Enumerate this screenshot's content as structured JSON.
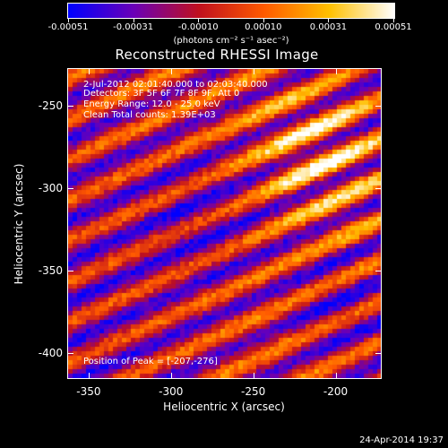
{
  "colorbar": {
    "tick_labels": [
      "-0.00051",
      "-0.00031",
      "-0.00010",
      "0.00010",
      "0.00031",
      "0.00051"
    ],
    "units": "(photons cm⁻² s⁻¹ asec⁻²)",
    "colors": [
      "#0000ff",
      "#6a00b8",
      "#c0101f",
      "#ff5a00",
      "#ffc000",
      "#ffffff"
    ]
  },
  "plot": {
    "title": "Reconstructed RHESSI Image",
    "info_lines": [
      " 2-Jul-2012 02:01:40.000 to 02:03:40.000",
      "Detectors: 3F 5F 6F 7F 8F 9F, Att 0",
      "Energy Range: 12.0 - 25.0 keV",
      "Clean     Total counts: 1.39E+03"
    ],
    "peak_label": "Position of Peak = [-207,-276]"
  },
  "chart_data": {
    "type": "heatmap",
    "title": "Reconstructed RHESSI Image",
    "xlabel": "Heliocentric X (arcsec)",
    "ylabel": "Heliocentric Y (arcsec)",
    "x_ticks": [
      "-350",
      "-300",
      "-250",
      "-200"
    ],
    "y_ticks": [
      "-250",
      "-300",
      "-350",
      "-400"
    ],
    "xlim": [
      -363,
      -172
    ],
    "ylim": [
      -416,
      -227
    ],
    "zlim": [
      -0.00051,
      0.00051
    ],
    "peak": [
      -207,
      -276
    ]
  },
  "footer": {
    "timestamp": "24-Apr-2014 19:37"
  }
}
